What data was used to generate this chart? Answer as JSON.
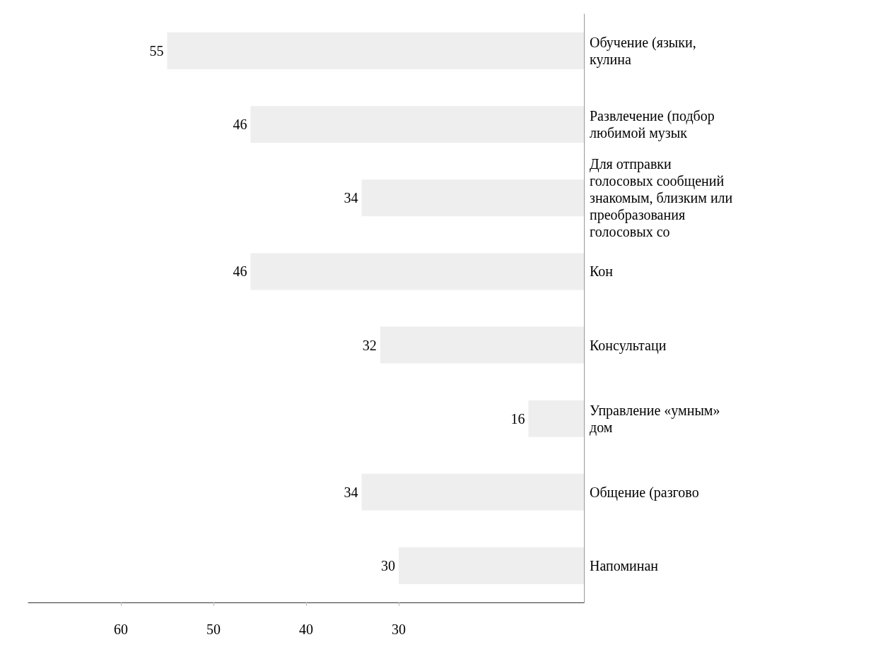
{
  "chart_data": {
    "type": "bar",
    "orientation": "horizontal",
    "categories": [
      "Обучение (языки, кулина",
      "Развлечение (подбор любимой музык",
      "Для отправки голосовых сообщений знакомым, близким или преобразования голосовых со",
      "Кон",
      "Консультаци",
      "Управление «умным» дом",
      "Общение (разгово",
      "Напоминан"
    ],
    "values": [
      55,
      46,
      34,
      46,
      32,
      16,
      34,
      30
    ],
    "color": "#eeeeee",
    "data_labels": true,
    "grid": false,
    "xlim": [
      70,
      10
    ],
    "xticks": [
      60,
      50,
      40,
      30
    ]
  }
}
